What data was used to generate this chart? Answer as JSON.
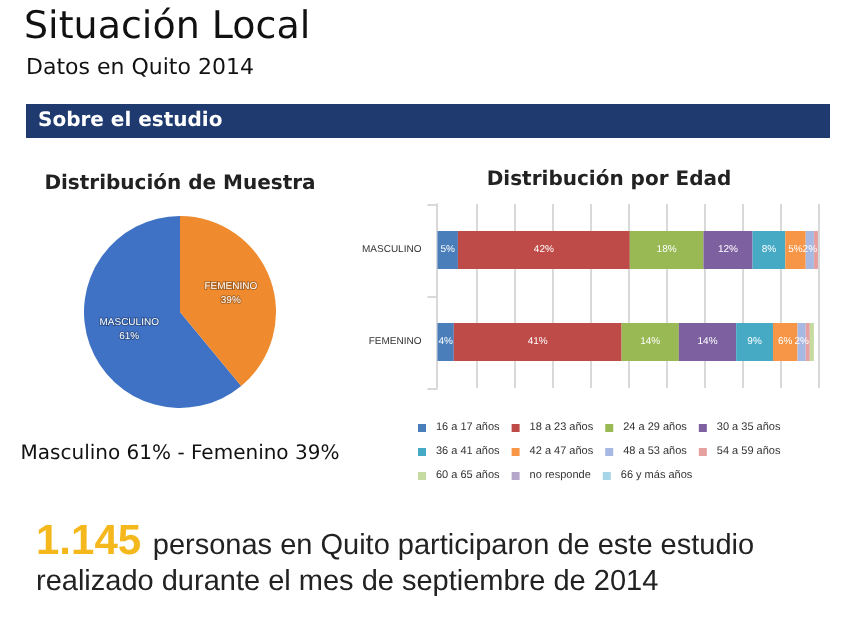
{
  "chart_data": [
    {
      "type": "other",
      "title": "Situación Local",
      "subtitle": "Datos en Quito 2014",
      "annotations": [
        "Sobre el estudio"
      ]
    },
    {
      "type": "pie",
      "title": "Distribución de Muestra",
      "categories": [
        "MASCULINO",
        "FEMENINO"
      ],
      "values": [
        61,
        39
      ],
      "colors": [
        "#3f72c4",
        "#ef8a2e"
      ],
      "value_labels": [
        "61%",
        "39%"
      ],
      "legend": false,
      "annotations": [
        "Masculino 61% - Femenino 39%"
      ]
    },
    {
      "type": "bar",
      "orientation": "horizontal",
      "stacked": true,
      "title": "Distribución por Edad",
      "categories": [
        "MASCULINO",
        "FEMENINO"
      ],
      "xlim": [
        0,
        93
      ],
      "xticks": [
        {
          "value": 0,
          "label": null
        },
        {
          "value": 9.3,
          "label": null
        },
        {
          "value": 18.6,
          "label": null
        },
        {
          "value": 27.9,
          "label": null
        },
        {
          "value": 37.2,
          "label": null
        },
        {
          "value": 46.5,
          "label": null
        },
        {
          "value": 55.8,
          "label": null
        },
        {
          "value": 65.1,
          "label": null
        },
        {
          "value": 74.4,
          "label": null
        },
        {
          "value": 83.7,
          "label": null
        },
        {
          "value": 93,
          "label": null
        }
      ],
      "tick_labels": "y",
      "grid": "x",
      "legend": "bottom",
      "series": [
        {
          "name": "16 a 17 años",
          "color": "#4a7ebb",
          "values": [
            5,
            4
          ],
          "value_labels": [
            "5%",
            "4%"
          ]
        },
        {
          "name": "18 a 23 años",
          "color": "#be4b48",
          "values": [
            42,
            41
          ],
          "value_labels": [
            "42%",
            "41%"
          ]
        },
        {
          "name": "24 a 29 años",
          "color": "#98b954",
          "values": [
            18,
            14
          ],
          "value_labels": [
            "18%",
            "14%"
          ]
        },
        {
          "name": "30 a 35 años",
          "color": "#7d60a0",
          "values": [
            12,
            14
          ],
          "value_labels": [
            "12%",
            "14%"
          ]
        },
        {
          "name": "36 a 41 años",
          "color": "#46aac5",
          "values": [
            8,
            9
          ],
          "value_labels": [
            "8%",
            "9%"
          ]
        },
        {
          "name": "42 a 47 años",
          "color": "#f79646",
          "values": [
            5,
            6
          ],
          "value_labels": [
            "5%",
            "6%"
          ]
        },
        {
          "name": "48 a 53 años",
          "color": "#a7b9e3",
          "values": [
            2,
            2
          ],
          "value_labels": [
            "2%",
            "2%"
          ]
        },
        {
          "name": "54 a 59 años",
          "color": "#e6a0a0",
          "values": [
            1,
            1
          ],
          "value_labels": [
            null,
            null
          ]
        },
        {
          "name": "60 a 65 años",
          "color": "#c5dba0",
          "values": [
            null,
            1
          ],
          "value_labels": [
            null,
            null
          ]
        },
        {
          "name": "no responde",
          "color": "#b5a6cc",
          "values": [
            null,
            null
          ],
          "value_labels": [
            null,
            null
          ]
        },
        {
          "name": "66 y más años",
          "color": "#a5d5e6",
          "values": [
            null,
            null
          ],
          "value_labels": [
            null,
            null
          ]
        }
      ]
    },
    {
      "type": "other",
      "annotations": [
        "1.145",
        "personas en Quito participaron de este estudio realizado durante el mes de septiembre de 2014"
      ]
    }
  ]
}
